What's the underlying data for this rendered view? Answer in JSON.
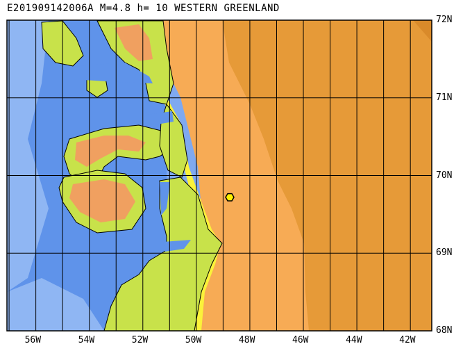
{
  "title": "E201909142006A M=4.8 h= 10 WESTERN GREENLAND",
  "latitude_labels": [
    "72N",
    "71N",
    "70N",
    "69N",
    "68N"
  ],
  "longitude_labels": [
    "56W",
    "54W",
    "52W",
    "50W",
    "48W",
    "46W",
    "44W",
    "42W"
  ],
  "colors": {
    "ocean_deep": "#7fa9f0",
    "ocean_mid": "#8fb6f3",
    "ocean_shelf": "#5f93ea",
    "coast_lowland": "#c8e24a",
    "coast_green": "#9ccf3c",
    "highland": "#f0a060",
    "ice_edge_yellow": "#fbf23a",
    "ice_sheet": "#f7ab55",
    "ice_sheet_inner": "#e69a38",
    "ice_sheet_peak": "#d98a2a",
    "grid": "#000000",
    "event_marker": "#fff200"
  },
  "event_marker": {
    "lat": 69.72,
    "lon": -48.75,
    "symbol": "hexagon"
  }
}
